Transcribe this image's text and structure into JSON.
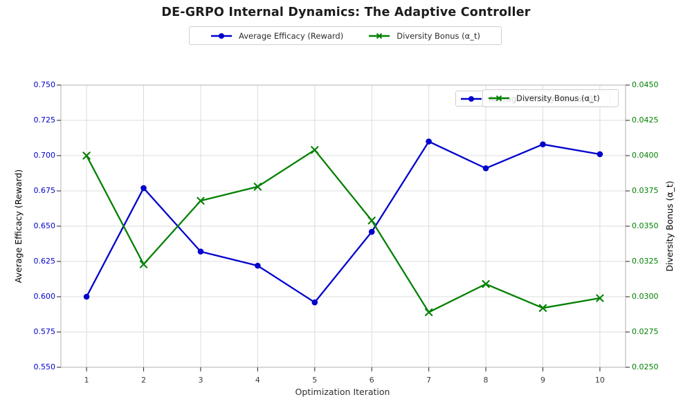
{
  "title": "DE-GRPO Internal Dynamics: The Adaptive Controller",
  "colors": {
    "efficacy_blue": "#0000cd",
    "diversity_green": "#008000",
    "gridline": "#dcdcdc",
    "spine": "#c4c4c4",
    "tick_mark": "#333333",
    "legend_text": "#2b2b2b"
  },
  "chart_data": {
    "type": "line",
    "title": "DE-GRPO Internal Dynamics: The Adaptive Controller",
    "xlabel": "Optimization Iteration",
    "x": [
      1,
      2,
      3,
      4,
      5,
      6,
      7,
      8,
      9,
      10
    ],
    "x_ticks": [
      "1",
      "2",
      "3",
      "4",
      "5",
      "6",
      "7",
      "8",
      "9",
      "10"
    ],
    "x_range": {
      "min": 0.55,
      "max": 10.45
    },
    "series": [
      {
        "name": "Average Efficacy (Reward)",
        "axis": "left",
        "color": "#0000cd",
        "marker": "circle",
        "values": [
          0.6,
          0.677,
          0.632,
          0.622,
          0.596,
          0.646,
          0.71,
          0.691,
          0.708,
          0.701
        ]
      },
      {
        "name": "Diversity Bonus (α_t)",
        "axis": "right",
        "color": "#008000",
        "marker": "x",
        "values": [
          0.04,
          0.0323,
          0.0368,
          0.0378,
          0.0404,
          0.0354,
          0.0289,
          0.0309,
          0.0292,
          0.0299
        ]
      }
    ],
    "y_left": {
      "label": "Average Efficacy (Reward)",
      "color": "#0000cd",
      "min": 0.55,
      "max": 0.75,
      "ticks": [
        "0.550",
        "0.575",
        "0.600",
        "0.625",
        "0.650",
        "0.675",
        "0.700",
        "0.725",
        "0.750"
      ]
    },
    "y_right": {
      "label": "Diversity Bonus (α_t)",
      "color": "#008000",
      "min": 0.025,
      "max": 0.045,
      "ticks": [
        "0.0250",
        "0.0275",
        "0.0300",
        "0.0325",
        "0.0350",
        "0.0375",
        "0.0400",
        "0.0425",
        "0.0450"
      ]
    },
    "grid": true,
    "legend_position": "top-center-outside; duplicate overlapping legends upper-right inside axes"
  }
}
